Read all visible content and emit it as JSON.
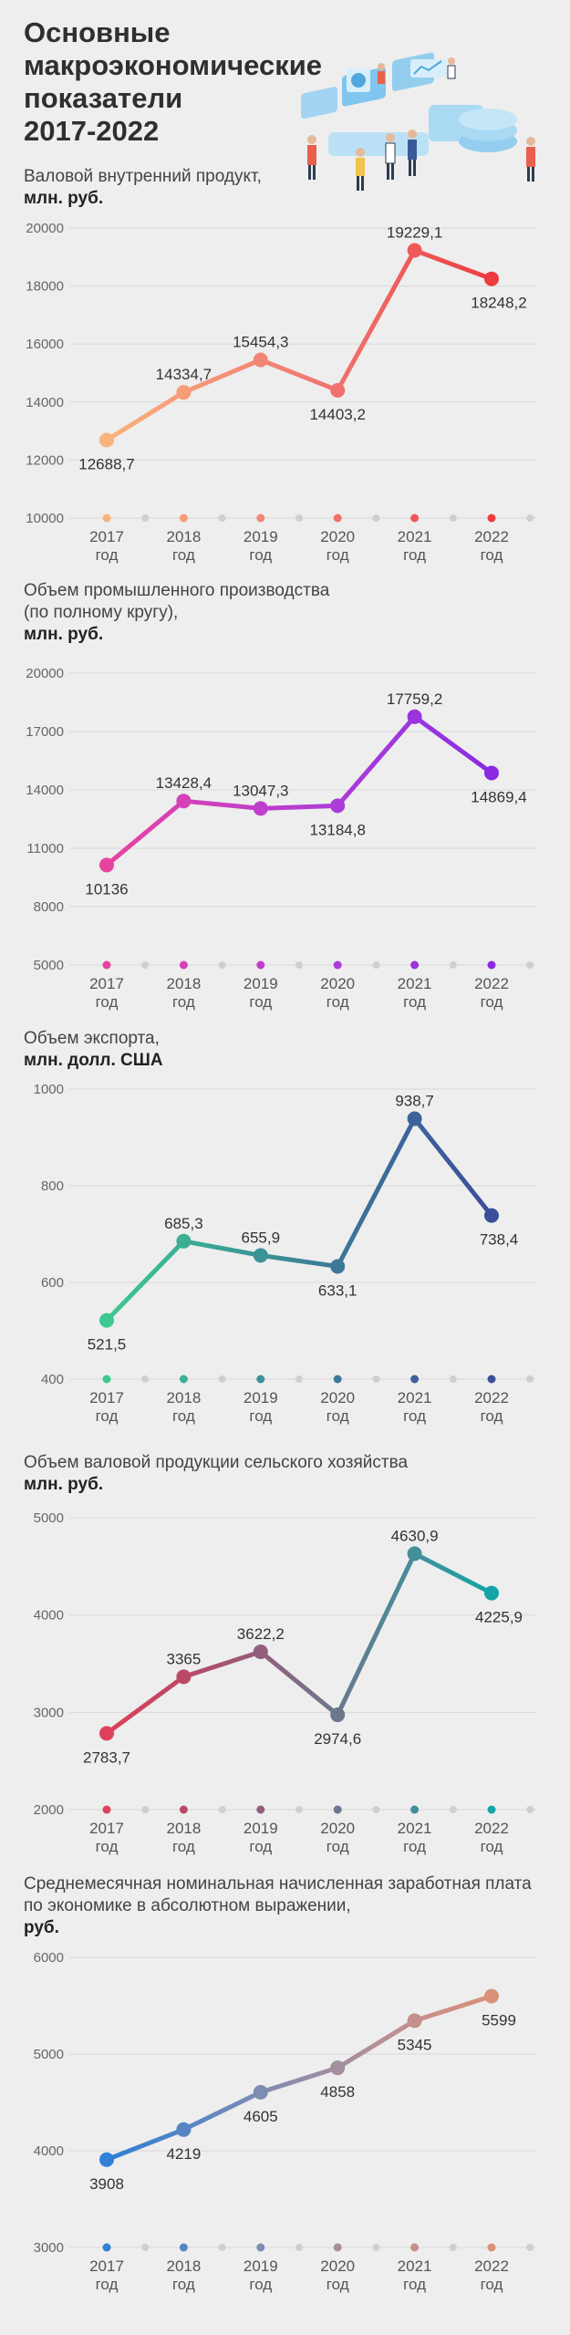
{
  "header": {
    "title_lines": [
      "Основные макроэкономические",
      "показатели",
      "2017-2022"
    ]
  },
  "charts": [
    {
      "id": "gdp",
      "title_lines": [
        "Валовой внутренний продукт,"
      ],
      "unit": "млн. руб.",
      "colors": [
        "#f9b27a",
        "#f38d76",
        "#ef6b6b",
        "#ee3b3f"
      ],
      "chart_data": {
        "type": "line",
        "categories": [
          "2017\nгод",
          "2018\nгод",
          "2019\nгод",
          "2020\nгод",
          "2021\nгод",
          "2022\nгод"
        ],
        "values": [
          12688.7,
          14334.7,
          15454.3,
          14403.2,
          19229.1,
          18248.2
        ],
        "value_labels": [
          "12688,7",
          "14334,7",
          "15454,3",
          "14403,2",
          "19229,1",
          "18248,2"
        ],
        "label_pos": [
          "below",
          "above",
          "above",
          "below",
          "above",
          "below"
        ],
        "yticks": [
          10000,
          12000,
          14000,
          16000,
          18000,
          20000
        ],
        "ylim": [
          10000,
          20000
        ],
        "grid": true
      }
    },
    {
      "id": "industry",
      "title_lines": [
        "Объем промышленного производства",
        "(по полному кругу),"
      ],
      "unit": "млн. руб.",
      "colors": [
        "#e8439f",
        "#c63fc8",
        "#a53bdc",
        "#8a2be2"
      ],
      "chart_data": {
        "type": "line",
        "categories": [
          "2017\nгод",
          "2018\nгод",
          "2019\nгод",
          "2020\nгод",
          "2021\nгод",
          "2022\nгод"
        ],
        "values": [
          10136,
          13428.4,
          13047.3,
          13184.8,
          17759.2,
          14869.4
        ],
        "value_labels": [
          "10136",
          "13428,4",
          "13047,3",
          "13184,8",
          "17759,2",
          "14869,4"
        ],
        "label_pos": [
          "below",
          "above",
          "above",
          "below",
          "above",
          "below"
        ],
        "yticks": [
          5000,
          8000,
          11000,
          14000,
          17000,
          20000
        ],
        "ylim": [
          5000,
          20000
        ],
        "grid": true
      }
    },
    {
      "id": "export",
      "title_lines": [
        "Объем экспорта,"
      ],
      "unit": "млн. долл. США",
      "colors": [
        "#3cc98f",
        "#3a9c96",
        "#3d6f98",
        "#3b4f9a"
      ],
      "chart_data": {
        "type": "line",
        "categories": [
          "2017\nгод",
          "2018\nгод",
          "2019\nгод",
          "2020\nгод",
          "2021\nгод",
          "2022\nгод"
        ],
        "values": [
          521.5,
          685.3,
          655.9,
          633.1,
          938.7,
          738.4
        ],
        "value_labels": [
          "521,5",
          "685,3",
          "655,9",
          "633,1",
          "938,7",
          "738,4"
        ],
        "label_pos": [
          "below",
          "above",
          "above",
          "below",
          "above",
          "below"
        ],
        "yticks": [
          400,
          600,
          800,
          1000
        ],
        "ylim": [
          400,
          1000
        ],
        "grid": true
      }
    },
    {
      "id": "agriculture",
      "title_lines": [
        "Объем валовой продукции сельского хозяйства"
      ],
      "unit": "млн. руб.",
      "colors": [
        "#e0405a",
        "#b14b6a",
        "#7d6a86",
        "#4f8a97",
        "#14a5a8"
      ],
      "chart_data": {
        "type": "line",
        "categories": [
          "2017\nгод",
          "2018\nгод",
          "2019\nгод",
          "2020\nгод",
          "2021\nгод",
          "2022\nгод"
        ],
        "values": [
          2783.7,
          3365,
          3622.2,
          2974.6,
          4630.9,
          4225.9
        ],
        "value_labels": [
          "2783,7",
          "3365",
          "3622,2",
          "2974,6",
          "4630,9",
          "4225,9"
        ],
        "label_pos": [
          "below",
          "above",
          "above",
          "below",
          "above",
          "below"
        ],
        "yticks": [
          2000,
          3000,
          4000,
          5000
        ],
        "ylim": [
          2000,
          5000
        ],
        "grid": true
      }
    },
    {
      "id": "salary",
      "title_lines": [
        "Среднемесячная номинальная начисленная заработная плата",
        "по экономике в абсолютном выражении,"
      ],
      "unit": "руб.",
      "colors": [
        "#2f7fd8",
        "#5f87c0",
        "#8f8fa8",
        "#c09090",
        "#d9917a"
      ],
      "chart_data": {
        "type": "line",
        "categories": [
          "2017\nгод",
          "2018\nгод",
          "2019\nгод",
          "2020\nгод",
          "2021\nгод",
          "2022\nгод"
        ],
        "values": [
          3908,
          4219,
          4605,
          4858,
          5345,
          5599
        ],
        "value_labels": [
          "3908",
          "4219",
          "4605",
          "4858",
          "5345",
          "5599"
        ],
        "label_pos": [
          "below",
          "below",
          "below",
          "below",
          "below",
          "below"
        ],
        "yticks": [
          3000,
          4000,
          5000,
          6000
        ],
        "ylim": [
          3000,
          6000
        ],
        "grid": true
      }
    }
  ]
}
